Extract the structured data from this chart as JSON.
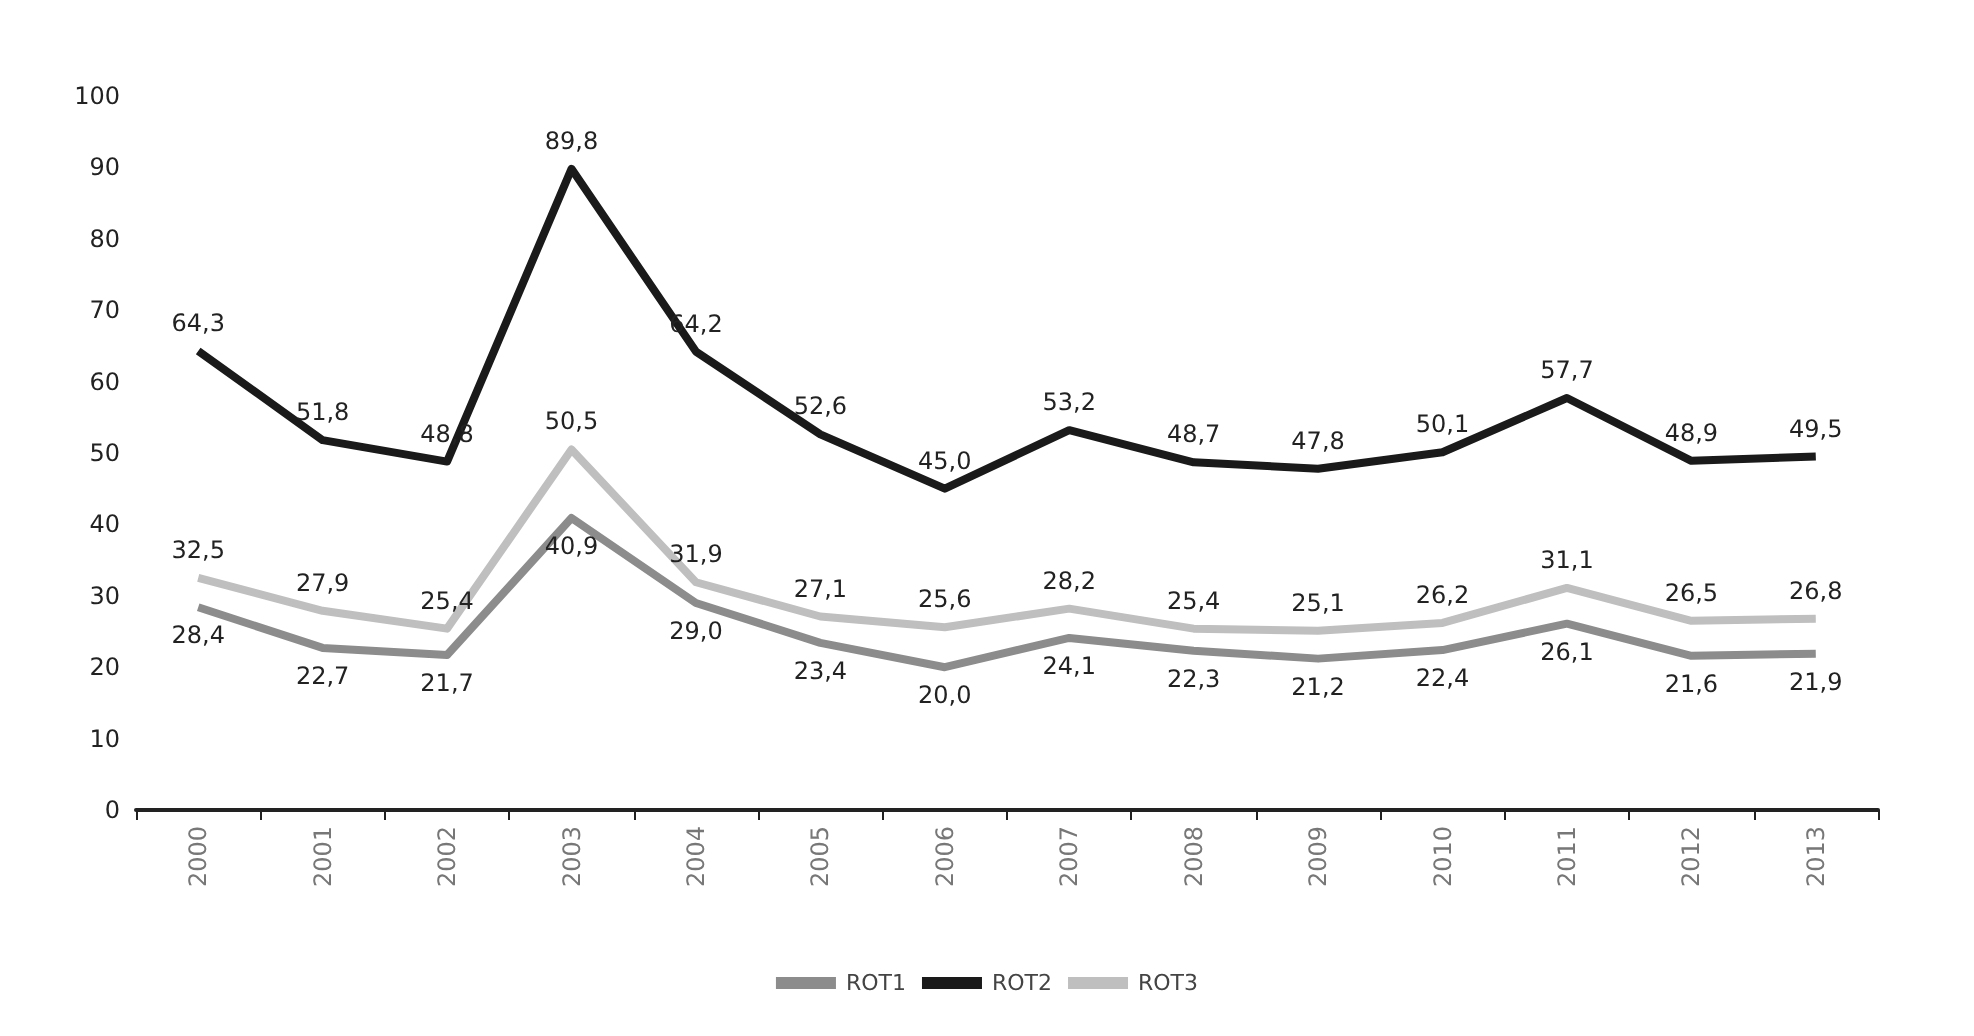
{
  "chart_data": {
    "type": "line",
    "categories": [
      "2000",
      "2001",
      "2002",
      "2003",
      "2004",
      "2005",
      "2006",
      "2007",
      "2008",
      "2009",
      "2010",
      "2011",
      "2012",
      "2013"
    ],
    "series": [
      {
        "name": "ROT1",
        "color": "#8c8c8c",
        "values": [
          28.4,
          22.7,
          21.7,
          40.9,
          29.0,
          23.4,
          20.0,
          24.1,
          22.3,
          21.2,
          22.4,
          26.1,
          21.6,
          21.9
        ],
        "value_labels": [
          "28,4",
          "22,7",
          "21,7",
          "40,9",
          "29,0",
          "23,4",
          "20,0",
          "24,1",
          "22,3",
          "21,2",
          "22,4",
          "26,1",
          "21,6",
          "21,9"
        ]
      },
      {
        "name": "ROT2",
        "color": "#1a1a1a",
        "values": [
          64.3,
          51.8,
          48.8,
          89.8,
          64.2,
          52.6,
          45.0,
          53.2,
          48.7,
          47.8,
          50.1,
          57.7,
          48.9,
          49.5
        ],
        "value_labels": [
          "64,3",
          "51,8",
          "48,8",
          "89,8",
          "64,2",
          "52,6",
          "45,0",
          "53,2",
          "48,7",
          "47,8",
          "50,1",
          "57,7",
          "48,9",
          "49,5"
        ]
      },
      {
        "name": "ROT3",
        "color": "#bfbfbf",
        "values": [
          32.5,
          27.9,
          25.4,
          50.5,
          31.9,
          27.1,
          25.6,
          28.2,
          25.4,
          25.1,
          26.2,
          31.1,
          26.5,
          26.8
        ],
        "value_labels": [
          "32,5",
          "27,9",
          "25,4",
          "50,5",
          "31,9",
          "27,1",
          "25,6",
          "28,2",
          "25,4",
          "25,1",
          "26,2",
          "31,1",
          "26,5",
          "26,8"
        ]
      }
    ],
    "ylim": [
      0,
      100
    ],
    "yticks": [
      0,
      10,
      20,
      30,
      40,
      50,
      60,
      70,
      80,
      90,
      100
    ],
    "grid": false,
    "legend": "bottom",
    "marker": "none",
    "line_style": "solid"
  }
}
